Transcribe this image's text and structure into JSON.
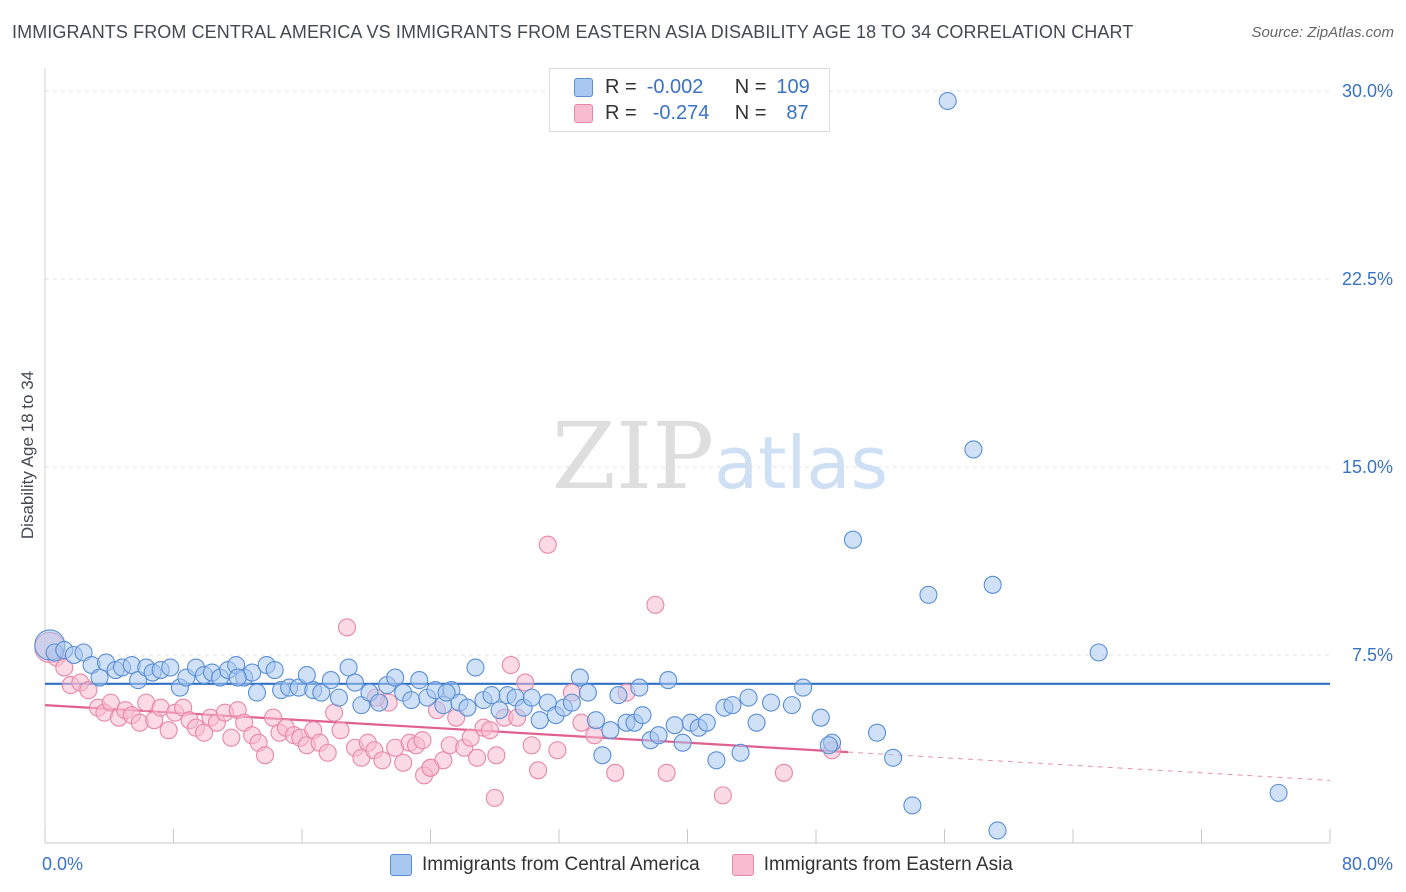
{
  "title": "IMMIGRANTS FROM CENTRAL AMERICA VS IMMIGRANTS FROM EASTERN ASIA DISABILITY AGE 18 TO 34 CORRELATION CHART",
  "source": "Source: ZipAtlas.com",
  "watermark": "ZIPatlas",
  "legend": {
    "rows": [
      {
        "r_label": "R =",
        "r_value": "-0.002",
        "n_label": "N =",
        "n_value": "109"
      },
      {
        "r_label": "R =",
        "r_value": "-0.274",
        "n_label": "N =",
        "n_value": "87"
      }
    ]
  },
  "colors": {
    "blue_fill": "#a9c8f0",
    "blue_stroke": "#5a8fd6",
    "blue_line": "#2f6fc5",
    "pink_fill": "#f7bcd0",
    "pink_stroke": "#e887a8",
    "pink_line": "#e0608f",
    "axis_label": "#3a72c4",
    "grid": "#e2e2e2"
  },
  "chart_data": {
    "type": "scatter",
    "xlabel": "",
    "ylabel": "Disability Age 18 to 34",
    "x_tick_labels": [
      "0.0%",
      "80.0%"
    ],
    "y_tick_labels": [
      "7.5%",
      "15.0%",
      "22.5%",
      "30.0%"
    ],
    "y_ticks": [
      7.5,
      15.0,
      22.5,
      30.0
    ],
    "xlim": [
      0,
      80
    ],
    "ylim": [
      0,
      31
    ],
    "grid": true,
    "legend_position": "bottom",
    "series": [
      {
        "name": "Immigrants from Central America",
        "color": "#a9c8f0",
        "trend": {
          "x": [
            0,
            80
          ],
          "y": [
            6.35,
            6.35
          ],
          "solid_until": 80
        },
        "points": [
          [
            0.3,
            7.9
          ],
          [
            0.6,
            7.6
          ],
          [
            1.2,
            7.7
          ],
          [
            1.8,
            7.5
          ],
          [
            2.4,
            7.6
          ],
          [
            2.9,
            7.1
          ],
          [
            3.4,
            6.6
          ],
          [
            3.8,
            7.2
          ],
          [
            4.4,
            6.9
          ],
          [
            4.8,
            7.0
          ],
          [
            5.4,
            7.1
          ],
          [
            5.8,
            6.5
          ],
          [
            6.3,
            7.0
          ],
          [
            6.7,
            6.8
          ],
          [
            7.2,
            6.9
          ],
          [
            7.8,
            7.0
          ],
          [
            8.4,
            6.2
          ],
          [
            8.8,
            6.6
          ],
          [
            9.4,
            7.0
          ],
          [
            9.9,
            6.7
          ],
          [
            10.4,
            6.8
          ],
          [
            10.9,
            6.6
          ],
          [
            11.4,
            6.9
          ],
          [
            11.9,
            7.1
          ],
          [
            12.4,
            6.6
          ],
          [
            12.9,
            6.8
          ],
          [
            13.2,
            6.0
          ],
          [
            13.8,
            7.1
          ],
          [
            14.3,
            6.9
          ],
          [
            14.7,
            6.1
          ],
          [
            15.2,
            6.2
          ],
          [
            15.8,
            6.2
          ],
          [
            16.3,
            6.7
          ],
          [
            16.7,
            6.1
          ],
          [
            17.2,
            6.0
          ],
          [
            17.8,
            6.5
          ],
          [
            18.3,
            5.8
          ],
          [
            18.9,
            7.0
          ],
          [
            19.3,
            6.4
          ],
          [
            19.7,
            5.5
          ],
          [
            20.2,
            6.0
          ],
          [
            20.8,
            5.6
          ],
          [
            21.3,
            6.3
          ],
          [
            21.8,
            6.6
          ],
          [
            22.3,
            6.0
          ],
          [
            22.8,
            5.7
          ],
          [
            23.3,
            6.5
          ],
          [
            23.8,
            5.8
          ],
          [
            24.3,
            6.1
          ],
          [
            24.8,
            5.5
          ],
          [
            25.3,
            6.1
          ],
          [
            25.8,
            5.6
          ],
          [
            26.3,
            5.4
          ],
          [
            26.8,
            7.0
          ],
          [
            27.3,
            5.7
          ],
          [
            27.8,
            5.9
          ],
          [
            28.3,
            5.3
          ],
          [
            28.8,
            5.9
          ],
          [
            29.3,
            5.8
          ],
          [
            29.8,
            5.4
          ],
          [
            30.3,
            5.8
          ],
          [
            30.8,
            4.9
          ],
          [
            31.3,
            5.6
          ],
          [
            31.8,
            5.1
          ],
          [
            32.3,
            5.4
          ],
          [
            32.8,
            5.6
          ],
          [
            33.3,
            6.6
          ],
          [
            33.8,
            6.0
          ],
          [
            34.3,
            4.9
          ],
          [
            34.7,
            3.5
          ],
          [
            35.2,
            4.5
          ],
          [
            35.7,
            5.9
          ],
          [
            36.2,
            4.8
          ],
          [
            36.7,
            4.8
          ],
          [
            37.2,
            5.1
          ],
          [
            37.7,
            4.1
          ],
          [
            38.2,
            4.3
          ],
          [
            38.8,
            6.5
          ],
          [
            39.2,
            4.7
          ],
          [
            39.7,
            4.0
          ],
          [
            40.2,
            4.8
          ],
          [
            40.7,
            4.6
          ],
          [
            41.2,
            4.8
          ],
          [
            41.8,
            3.3
          ],
          [
            42.3,
            5.4
          ],
          [
            42.8,
            5.5
          ],
          [
            43.3,
            3.6
          ],
          [
            43.8,
            5.8
          ],
          [
            45.2,
            5.6
          ],
          [
            46.5,
            5.5
          ],
          [
            47.2,
            6.2
          ],
          [
            48.3,
            5.0
          ],
          [
            49.0,
            4.0
          ],
          [
            50.3,
            12.1
          ],
          [
            51.8,
            4.4
          ],
          [
            52.8,
            3.4
          ],
          [
            54.0,
            1.5
          ],
          [
            55.0,
            9.9
          ],
          [
            56.2,
            29.6
          ],
          [
            57.8,
            15.7
          ],
          [
            59.0,
            10.3
          ],
          [
            65.6,
            7.6
          ],
          [
            76.8,
            2.0
          ],
          [
            59.3,
            0.5
          ],
          [
            48.8,
            3.9
          ],
          [
            12.0,
            6.6
          ],
          [
            25.0,
            6.0
          ],
          [
            37.0,
            6.2
          ],
          [
            44.3,
            4.8
          ]
        ]
      },
      {
        "name": "Immigrants from Eastern Asia",
        "color": "#f7bcd0",
        "trend": {
          "x": [
            0,
            80
          ],
          "y": [
            5.5,
            2.5
          ],
          "solid_until": 50
        },
        "points": [
          [
            0.3,
            7.8
          ],
          [
            0.7,
            7.4
          ],
          [
            1.2,
            7.0
          ],
          [
            1.6,
            6.3
          ],
          [
            2.2,
            6.4
          ],
          [
            2.7,
            6.1
          ],
          [
            3.3,
            5.4
          ],
          [
            3.7,
            5.2
          ],
          [
            4.1,
            5.6
          ],
          [
            4.6,
            5.0
          ],
          [
            5.0,
            5.3
          ],
          [
            5.4,
            5.1
          ],
          [
            5.9,
            4.8
          ],
          [
            6.3,
            5.6
          ],
          [
            6.8,
            4.9
          ],
          [
            7.2,
            5.4
          ],
          [
            7.7,
            4.5
          ],
          [
            8.1,
            5.2
          ],
          [
            8.6,
            5.4
          ],
          [
            9.0,
            4.9
          ],
          [
            9.4,
            4.6
          ],
          [
            9.9,
            4.4
          ],
          [
            10.3,
            5.0
          ],
          [
            10.7,
            4.8
          ],
          [
            11.2,
            5.2
          ],
          [
            11.6,
            4.2
          ],
          [
            12.0,
            5.3
          ],
          [
            12.4,
            4.8
          ],
          [
            12.9,
            4.3
          ],
          [
            13.3,
            4.0
          ],
          [
            13.7,
            3.5
          ],
          [
            14.2,
            5.0
          ],
          [
            14.6,
            4.4
          ],
          [
            15.0,
            4.6
          ],
          [
            15.5,
            4.3
          ],
          [
            15.9,
            4.2
          ],
          [
            16.3,
            3.9
          ],
          [
            16.7,
            4.5
          ],
          [
            17.1,
            4.0
          ],
          [
            17.6,
            3.6
          ],
          [
            18.0,
            5.2
          ],
          [
            18.4,
            4.5
          ],
          [
            18.8,
            8.6
          ],
          [
            19.3,
            3.8
          ],
          [
            19.7,
            3.4
          ],
          [
            20.1,
            4.0
          ],
          [
            20.5,
            3.7
          ],
          [
            21.0,
            3.3
          ],
          [
            21.4,
            5.6
          ],
          [
            21.8,
            3.8
          ],
          [
            22.3,
            3.2
          ],
          [
            22.7,
            4.0
          ],
          [
            23.1,
            3.9
          ],
          [
            23.5,
            4.1
          ],
          [
            24.0,
            3.0
          ],
          [
            24.4,
            5.3
          ],
          [
            24.8,
            3.3
          ],
          [
            25.2,
            3.9
          ],
          [
            25.6,
            5.0
          ],
          [
            26.1,
            3.8
          ],
          [
            26.5,
            4.2
          ],
          [
            26.9,
            3.4
          ],
          [
            27.3,
            4.6
          ],
          [
            27.7,
            4.5
          ],
          [
            28.1,
            3.5
          ],
          [
            28.6,
            5.0
          ],
          [
            29.0,
            7.1
          ],
          [
            29.4,
            5.0
          ],
          [
            29.9,
            6.4
          ],
          [
            30.3,
            3.9
          ],
          [
            30.7,
            2.9
          ],
          [
            31.3,
            11.9
          ],
          [
            31.9,
            3.7
          ],
          [
            32.8,
            6.0
          ],
          [
            33.4,
            4.8
          ],
          [
            34.2,
            4.3
          ],
          [
            35.5,
            2.8
          ],
          [
            36.2,
            6.0
          ],
          [
            38.0,
            9.5
          ],
          [
            38.7,
            2.8
          ],
          [
            42.2,
            1.9
          ],
          [
            46.0,
            2.8
          ],
          [
            49.0,
            3.7
          ],
          [
            20.6,
            5.8
          ],
          [
            23.6,
            2.7
          ],
          [
            28.0,
            1.8
          ],
          [
            24.0,
            3.0
          ]
        ]
      }
    ]
  }
}
